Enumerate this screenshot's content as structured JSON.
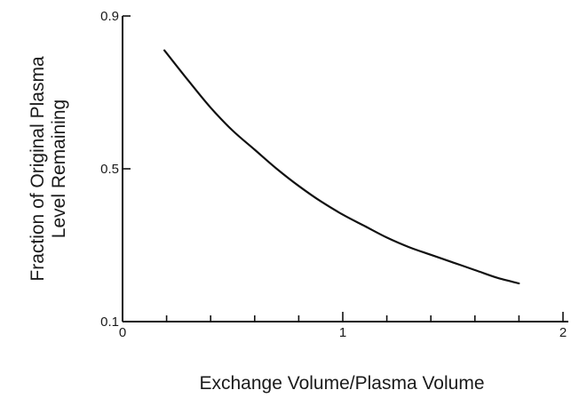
{
  "chart_data": {
    "type": "line",
    "title": "",
    "xlabel": "Exchange Volume/Plasma Volume",
    "ylabel": [
      "Fraction of Original Plasma",
      "Level Remaining"
    ],
    "xlim": [
      0,
      2
    ],
    "ylim": [
      0.1,
      0.9
    ],
    "x_tick_labels": [
      "0",
      "1",
      "2"
    ],
    "x_tick_values": [
      0,
      1,
      2
    ],
    "x_minor_step": 0.2,
    "y_tick_labels": [
      "0.1",
      "0.5",
      "0.9"
    ],
    "y_tick_values": [
      0.1,
      0.5,
      0.9
    ],
    "grid": false,
    "series": [
      {
        "x": [
          0.19,
          0.3,
          0.4,
          0.5,
          0.6,
          0.7,
          0.8,
          0.9,
          1.0,
          1.1,
          1.2,
          1.3,
          1.4,
          1.5,
          1.6,
          1.7,
          1.8
        ],
        "values": [
          0.81,
          0.73,
          0.66,
          0.6,
          0.55,
          0.5,
          0.455,
          0.415,
          0.38,
          0.35,
          0.32,
          0.295,
          0.275,
          0.255,
          0.235,
          0.215,
          0.2
        ]
      }
    ]
  }
}
